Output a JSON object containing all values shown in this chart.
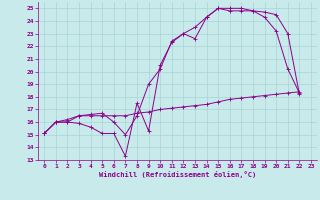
{
  "xlabel": "Windchill (Refroidissement éolien,°C)",
  "background_color": "#c8eaea",
  "line_color": "#8b008b",
  "grid_color": "#a8d4d4",
  "xlim": [
    -0.5,
    23.5
  ],
  "ylim": [
    13,
    25.5
  ],
  "yticks": [
    13,
    14,
    15,
    16,
    17,
    18,
    19,
    20,
    21,
    22,
    23,
    24,
    25
  ],
  "xticks": [
    0,
    1,
    2,
    3,
    4,
    5,
    6,
    7,
    8,
    9,
    10,
    11,
    12,
    13,
    14,
    15,
    16,
    17,
    18,
    19,
    20,
    21,
    22,
    23
  ],
  "line1_x": [
    0,
    1,
    2,
    3,
    4,
    5,
    6,
    7,
    8,
    9,
    10,
    11,
    12,
    13,
    14,
    15,
    16,
    17,
    18,
    19,
    20,
    21,
    22
  ],
  "line1_y": [
    15.1,
    16.0,
    16.0,
    15.9,
    15.6,
    15.1,
    15.1,
    13.3,
    17.5,
    15.3,
    20.5,
    22.3,
    23.0,
    22.6,
    24.3,
    25.0,
    24.8,
    24.8,
    24.8,
    24.3,
    23.2,
    20.2,
    18.3
  ],
  "line2_x": [
    0,
    1,
    2,
    3,
    4,
    5,
    6,
    7,
    8,
    9,
    10,
    11,
    12,
    13,
    14,
    15,
    16,
    17,
    18,
    19,
    20,
    21,
    22
  ],
  "line2_y": [
    15.1,
    16.0,
    16.0,
    16.5,
    16.6,
    16.7,
    16.0,
    15.0,
    16.5,
    19.0,
    20.2,
    22.4,
    23.0,
    23.5,
    24.3,
    25.0,
    25.0,
    25.0,
    24.8,
    24.7,
    24.5,
    23.0,
    18.2
  ],
  "line3_x": [
    0,
    1,
    2,
    3,
    4,
    5,
    6,
    7,
    8,
    9,
    10,
    11,
    12,
    13,
    14,
    15,
    16,
    17,
    18,
    19,
    20,
    21,
    22
  ],
  "line3_y": [
    15.1,
    16.0,
    16.2,
    16.5,
    16.5,
    16.5,
    16.5,
    16.5,
    16.7,
    16.8,
    17.0,
    17.1,
    17.2,
    17.3,
    17.4,
    17.6,
    17.8,
    17.9,
    18.0,
    18.1,
    18.2,
    18.3,
    18.4
  ]
}
